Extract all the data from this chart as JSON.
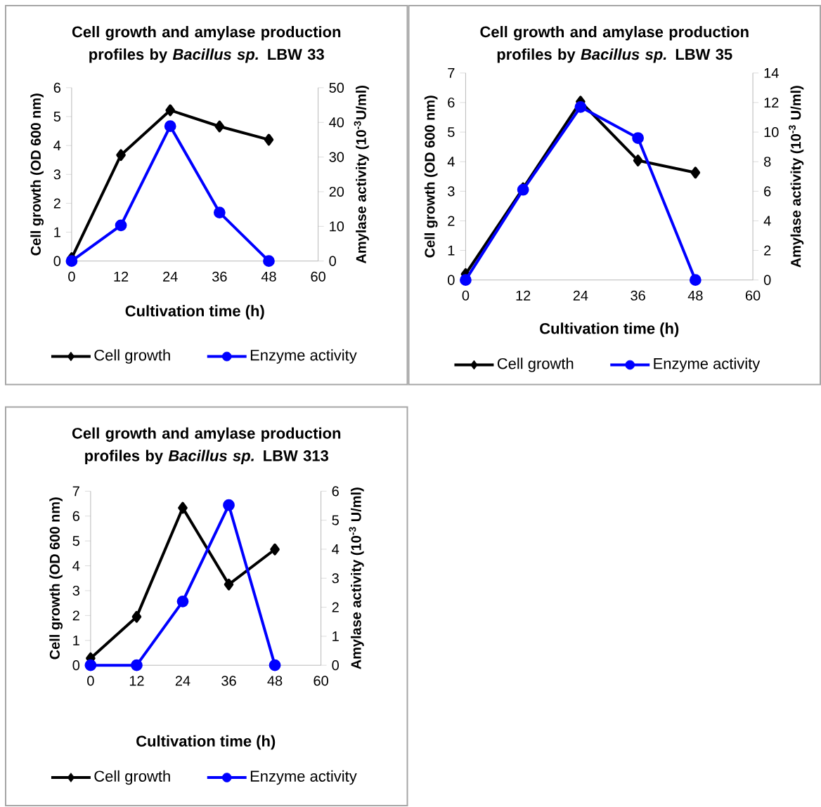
{
  "chart_data": [
    {
      "type": "line",
      "title": "Cell growth and amylase production profiles by *Bacillus sp.* LBW 33",
      "xlabel": "Cultivation time (h)",
      "ylabel": "Cell growth (OD 600 nm)",
      "y2label": "Amylase activity (10$^{-3}$U/ml)",
      "x": [
        0,
        12,
        24,
        36,
        48
      ],
      "xlim": [
        0,
        60
      ],
      "xticks": [
        0,
        12,
        24,
        36,
        48,
        60
      ],
      "ylim": [
        0,
        6
      ],
      "yticks": [
        0,
        1,
        2,
        3,
        4,
        5,
        6
      ],
      "y2lim": [
        0,
        50
      ],
      "y2ticks": [
        0,
        10,
        20,
        30,
        40,
        50
      ],
      "legend": "bottom",
      "line_style": "solid",
      "series": [
        {
          "name": "Cell  growth",
          "color": "#000000",
          "marker": "diamond",
          "values": [
            0.1,
            3.67,
            5.22,
            4.66,
            4.2
          ]
        },
        {
          "name": "Enzyme activity",
          "color": "#0000ff",
          "marker": "circle",
          "axis": "y2",
          "values": [
            0,
            10.3,
            38.9,
            14,
            0
          ]
        }
      ]
    },
    {
      "type": "line",
      "title": "Cell growth and amylase production profiles by *Bacillus sp.* LBW 35",
      "xlabel": "Cultivation time (h)",
      "ylabel": "Cell growth (OD 600 nm)",
      "y2label": "Amylase activity (10$^{-3}$ U/ml)",
      "x": [
        0,
        12,
        24,
        36,
        48
      ],
      "xlim": [
        0,
        60
      ],
      "xticks": [
        0,
        12,
        24,
        36,
        48,
        60
      ],
      "ylim": [
        0,
        7
      ],
      "yticks": [
        0,
        1,
        2,
        3,
        4,
        5,
        6,
        7
      ],
      "y2lim": [
        0,
        14
      ],
      "y2ticks": [
        0,
        2,
        4,
        6,
        8,
        10,
        12,
        14
      ],
      "legend": "bottom",
      "line_style": "solid",
      "series": [
        {
          "name": "Cell  growth",
          "color": "#000000",
          "marker": "diamond",
          "values": [
            0.2,
            3.1,
            6.03,
            4.04,
            3.63
          ]
        },
        {
          "name": "Enzyme activity",
          "color": "#0000ff",
          "marker": "circle",
          "axis": "y2",
          "values": [
            0,
            6.1,
            11.7,
            9.6,
            0
          ]
        }
      ]
    },
    {
      "type": "line",
      "title": "Cell growth and amylase production profiles by *Bacillus sp.* LBW 313",
      "xlabel": "Cultivation time (h)",
      "ylabel": "Cell growth (OD 600 nm)",
      "y2label": "Amylase activity  (10$^{-3}$ U/ml)",
      "x": [
        0,
        12,
        24,
        36,
        48
      ],
      "xlim": [
        0,
        60
      ],
      "xticks": [
        0,
        12,
        24,
        36,
        48,
        60
      ],
      "ylim": [
        0,
        7
      ],
      "yticks": [
        0,
        1,
        2,
        3,
        4,
        5,
        6,
        7
      ],
      "y2lim": [
        0,
        6
      ],
      "y2ticks": [
        0,
        1,
        2,
        3,
        4,
        5,
        6
      ],
      "legend": "bottom",
      "line_style": "solid",
      "series": [
        {
          "name": "Cell  growth",
          "color": "#000000",
          "marker": "diamond",
          "values": [
            0.28,
            1.95,
            6.33,
            3.25,
            4.66
          ]
        },
        {
          "name": "Enzyme activity",
          "color": "#0000ff",
          "marker": "circle",
          "axis": "y2",
          "values": [
            0,
            0,
            2.2,
            5.52,
            0
          ]
        }
      ]
    }
  ]
}
